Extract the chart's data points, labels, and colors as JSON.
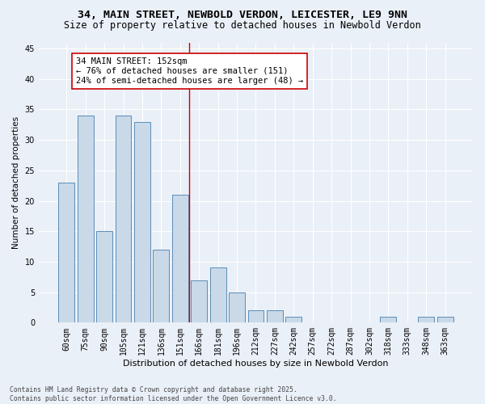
{
  "title1": "34, MAIN STREET, NEWBOLD VERDON, LEICESTER, LE9 9NN",
  "title2": "Size of property relative to detached houses in Newbold Verdon",
  "xlabel": "Distribution of detached houses by size in Newbold Verdon",
  "ylabel": "Number of detached properties",
  "categories": [
    "60sqm",
    "75sqm",
    "90sqm",
    "105sqm",
    "121sqm",
    "136sqm",
    "151sqm",
    "166sqm",
    "181sqm",
    "196sqm",
    "212sqm",
    "227sqm",
    "242sqm",
    "257sqm",
    "272sqm",
    "287sqm",
    "302sqm",
    "318sqm",
    "333sqm",
    "348sqm",
    "363sqm"
  ],
  "values": [
    23,
    34,
    15,
    34,
    33,
    12,
    21,
    7,
    9,
    5,
    2,
    2,
    1,
    0,
    0,
    0,
    0,
    1,
    0,
    1,
    1
  ],
  "bar_color": "#c9d9e8",
  "bar_edge_color": "#5b8db8",
  "ref_line_x": 6.5,
  "ref_line_color": "#cc0000",
  "annotation_text": "34 MAIN STREET: 152sqm\n← 76% of detached houses are smaller (151)\n24% of semi-detached houses are larger (48) →",
  "annotation_box_color": "#ffffff",
  "annotation_box_edge": "#cc0000",
  "bg_color": "#eaf0f7",
  "plot_bg_color": "#eaf0f7",
  "grid_color": "#ffffff",
  "footnote": "Contains HM Land Registry data © Crown copyright and database right 2025.\nContains public sector information licensed under the Open Government Licence v3.0.",
  "ylim": [
    0,
    46
  ],
  "yticks": [
    0,
    5,
    10,
    15,
    20,
    25,
    30,
    35,
    40,
    45
  ],
  "title1_fontsize": 9.5,
  "title2_fontsize": 8.5,
  "xlabel_fontsize": 8,
  "ylabel_fontsize": 7.5,
  "tick_fontsize": 7,
  "annotation_fontsize": 7.5,
  "footnote_fontsize": 5.8
}
